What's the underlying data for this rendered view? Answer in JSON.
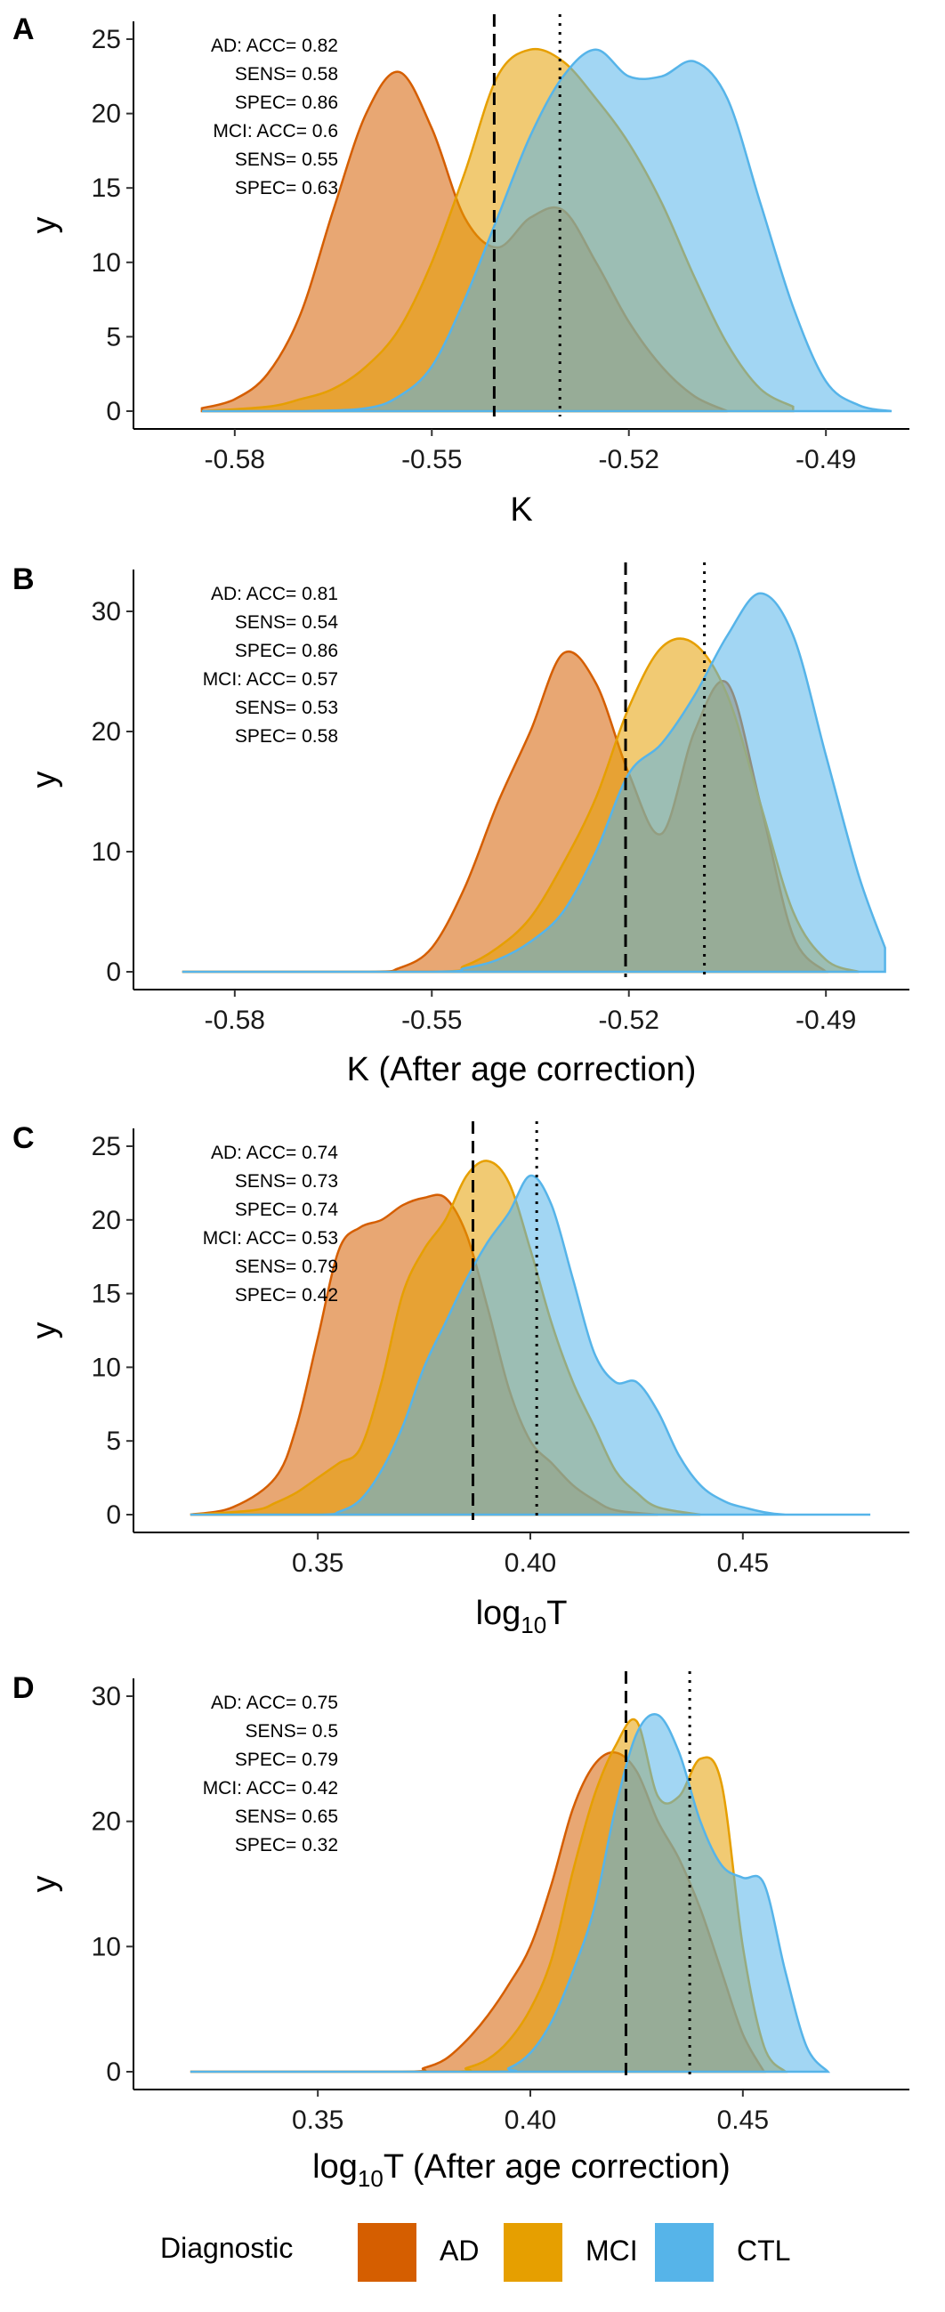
{
  "legend": {
    "title": "Diagnostic",
    "items": [
      {
        "label": "AD",
        "color": "#D55E00"
      },
      {
        "label": "MCI",
        "color": "#E69F00"
      },
      {
        "label": "CTL",
        "color": "#56B4E9"
      }
    ]
  },
  "chart_data": [
    {
      "panel": "A",
      "type": "area",
      "xlabel": "K",
      "xlabel_sub": "",
      "ylabel": "y",
      "xlim": [
        -0.59,
        -0.48
      ],
      "ylim": [
        0,
        25
      ],
      "xticks": [
        -0.58,
        -0.55,
        -0.52,
        -0.49
      ],
      "xtick_labels": [
        "-0.58",
        "-0.55",
        "-0.52",
        "-0.49"
      ],
      "yticks": [
        0,
        5,
        10,
        15,
        20,
        25
      ],
      "ytick_labels": [
        "0",
        "5",
        "10",
        "15",
        "20",
        "25"
      ],
      "vlines": [
        {
          "x": -0.5405,
          "style": "dashed"
        },
        {
          "x": -0.5305,
          "style": "dotted"
        }
      ],
      "stats": [
        {
          "text": "AD: ACC= 0.82"
        },
        {
          "text": "SENS= 0.58"
        },
        {
          "text": "SPEC= 0.86"
        },
        {
          "text": "MCI: ACC= 0.6"
        },
        {
          "text": "SENS= 0.55"
        },
        {
          "text": "SPEC= 0.63"
        }
      ],
      "series": [
        {
          "name": "AD",
          "color": "#D55E00",
          "x": [
            -0.585,
            -0.58,
            -0.575,
            -0.57,
            -0.565,
            -0.56,
            -0.555,
            -0.55,
            -0.545,
            -0.54,
            -0.535,
            -0.53,
            -0.525,
            -0.52,
            -0.515,
            -0.51,
            -0.505
          ],
          "values": [
            0.2,
            0.8,
            2.5,
            6.5,
            13.5,
            20,
            22.8,
            19,
            13,
            11,
            13,
            13.5,
            10,
            6,
            3,
            1,
            0
          ]
        },
        {
          "name": "MCI",
          "color": "#E69F00",
          "x": [
            -0.585,
            -0.575,
            -0.57,
            -0.565,
            -0.56,
            -0.555,
            -0.55,
            -0.545,
            -0.54,
            -0.535,
            -0.53,
            -0.525,
            -0.52,
            -0.515,
            -0.51,
            -0.505,
            -0.5,
            -0.495
          ],
          "values": [
            0,
            0.3,
            0.8,
            1.5,
            3,
            5.5,
            10,
            16,
            22.5,
            24.3,
            23.5,
            21,
            18,
            14,
            9,
            4.5,
            1.5,
            0.3
          ]
        },
        {
          "name": "CTL",
          "color": "#56B4E9",
          "x": [
            -0.585,
            -0.57,
            -0.56,
            -0.555,
            -0.55,
            -0.545,
            -0.54,
            -0.535,
            -0.53,
            -0.525,
            -0.52,
            -0.515,
            -0.51,
            -0.505,
            -0.5,
            -0.495,
            -0.49,
            -0.485,
            -0.48
          ],
          "values": [
            0,
            0,
            0.2,
            1,
            3,
            7.5,
            13,
            18.5,
            22.5,
            24.3,
            22.5,
            22.5,
            23.5,
            21,
            14,
            7,
            2,
            0.4,
            0
          ]
        }
      ]
    },
    {
      "panel": "B",
      "type": "area",
      "xlabel": "K (After age correction)",
      "xlabel_sub": "",
      "ylabel": "y",
      "xlim": [
        -0.59,
        -0.48
      ],
      "ylim": [
        0,
        32
      ],
      "xticks": [
        -0.58,
        -0.55,
        -0.52,
        -0.49
      ],
      "xtick_labels": [
        "-0.58",
        "-0.55",
        "-0.52",
        "-0.49"
      ],
      "yticks": [
        0,
        10,
        20,
        30
      ],
      "ytick_labels": [
        "0",
        "10",
        "20",
        "30"
      ],
      "vlines": [
        {
          "x": -0.5205,
          "style": "dashed"
        },
        {
          "x": -0.5085,
          "style": "dotted"
        }
      ],
      "stats": [
        {
          "text": "AD: ACC= 0.81"
        },
        {
          "text": "SENS= 0.54"
        },
        {
          "text": "SPEC= 0.86"
        },
        {
          "text": "MCI: ACC= 0.57"
        },
        {
          "text": "SENS= 0.53"
        },
        {
          "text": "SPEC= 0.58"
        }
      ],
      "series": [
        {
          "name": "AD",
          "color": "#D55E00",
          "x": [
            -0.588,
            -0.56,
            -0.555,
            -0.55,
            -0.545,
            -0.54,
            -0.535,
            -0.53,
            -0.525,
            -0.52,
            -0.515,
            -0.51,
            -0.505,
            -0.5,
            -0.495,
            -0.49
          ],
          "values": [
            0,
            0,
            0.3,
            2,
            7,
            14,
            20,
            26.5,
            24,
            16.5,
            11.5,
            20,
            24,
            14,
            3,
            0
          ]
        },
        {
          "name": "MCI",
          "color": "#E69F00",
          "x": [
            -0.588,
            -0.55,
            -0.545,
            -0.54,
            -0.535,
            -0.53,
            -0.525,
            -0.52,
            -0.515,
            -0.51,
            -0.505,
            -0.5,
            -0.495,
            -0.49,
            -0.485
          ],
          "values": [
            0,
            0,
            0.5,
            2,
            4.5,
            9,
            14.5,
            22,
            27,
            27.3,
            23,
            14,
            5,
            1,
            0
          ]
        },
        {
          "name": "CTL",
          "color": "#56B4E9",
          "x": [
            -0.588,
            -0.55,
            -0.545,
            -0.54,
            -0.535,
            -0.53,
            -0.525,
            -0.52,
            -0.515,
            -0.51,
            -0.505,
            -0.5,
            -0.495,
            -0.49,
            -0.485,
            -0.481
          ],
          "values": [
            0,
            0,
            0.3,
            1,
            2.5,
            5,
            10,
            16.5,
            19,
            23,
            28,
            31.5,
            28,
            18,
            8,
            2
          ]
        }
      ]
    },
    {
      "panel": "C",
      "type": "area",
      "xlabel": "log",
      "xlabel_sub": "10",
      "xlabel_tail": "T",
      "ylabel": "y",
      "xlim": [
        0.315,
        0.485
      ],
      "ylim": [
        0,
        25
      ],
      "xticks": [
        0.35,
        0.4,
        0.45
      ],
      "xtick_labels": [
        "0.35",
        "0.40",
        "0.45"
      ],
      "yticks": [
        0,
        5,
        10,
        15,
        20,
        25
      ],
      "ytick_labels": [
        "0",
        "5",
        "10",
        "15",
        "20",
        "25"
      ],
      "vlines": [
        {
          "x": 0.3865,
          "style": "dashed"
        },
        {
          "x": 0.4015,
          "style": "dotted"
        }
      ],
      "stats": [
        {
          "text": "AD: ACC= 0.74"
        },
        {
          "text": "SENS= 0.73"
        },
        {
          "text": "SPEC= 0.74"
        },
        {
          "text": "MCI: ACC= 0.53"
        },
        {
          "text": "SENS= 0.79"
        },
        {
          "text": "SPEC= 0.42"
        }
      ],
      "series": [
        {
          "name": "AD",
          "color": "#D55E00",
          "x": [
            0.32,
            0.33,
            0.34,
            0.345,
            0.35,
            0.355,
            0.36,
            0.365,
            0.37,
            0.375,
            0.38,
            0.385,
            0.39,
            0.395,
            0.4,
            0.405,
            0.41,
            0.415,
            0.42,
            0.43
          ],
          "values": [
            0,
            0.5,
            2.5,
            6,
            12,
            18,
            19.5,
            20,
            21,
            21.5,
            21.5,
            19,
            14,
            8.5,
            5,
            3.5,
            2,
            1,
            0.3,
            0
          ]
        },
        {
          "name": "MCI",
          "color": "#E69F00",
          "x": [
            0.32,
            0.335,
            0.34,
            0.345,
            0.35,
            0.355,
            0.36,
            0.365,
            0.37,
            0.375,
            0.38,
            0.385,
            0.39,
            0.395,
            0.4,
            0.405,
            0.41,
            0.415,
            0.42,
            0.425,
            0.43,
            0.44
          ],
          "values": [
            0,
            0.3,
            0.8,
            1.5,
            2.5,
            3.5,
            4.5,
            9,
            15,
            18,
            20,
            23,
            24,
            22.5,
            18,
            13,
            9,
            6,
            3,
            1.5,
            0.5,
            0
          ]
        },
        {
          "name": "CTL",
          "color": "#56B4E9",
          "x": [
            0.32,
            0.35,
            0.355,
            0.36,
            0.365,
            0.37,
            0.375,
            0.38,
            0.385,
            0.39,
            0.395,
            0.4,
            0.405,
            0.41,
            0.415,
            0.42,
            0.425,
            0.43,
            0.435,
            0.44,
            0.445,
            0.45,
            0.46,
            0.48
          ],
          "values": [
            0,
            0,
            0.2,
            1,
            3,
            6,
            10,
            13,
            16,
            18.5,
            20.5,
            23,
            21,
            16,
            11,
            9,
            9,
            7,
            4,
            2,
            1,
            0.5,
            0,
            0
          ]
        }
      ]
    },
    {
      "panel": "D",
      "type": "area",
      "xlabel": "log",
      "xlabel_sub": "10",
      "xlabel_tail": "T (After age correction)",
      "ylabel": "y",
      "xlim": [
        0.315,
        0.485
      ],
      "ylim": [
        0,
        30
      ],
      "xticks": [
        0.35,
        0.4,
        0.45
      ],
      "xtick_labels": [
        "0.35",
        "0.40",
        "0.45"
      ],
      "yticks": [
        0,
        10,
        20,
        30
      ],
      "ytick_labels": [
        "0",
        "10",
        "20",
        "30"
      ],
      "vlines": [
        {
          "x": 0.4225,
          "style": "dashed"
        },
        {
          "x": 0.4375,
          "style": "dotted"
        }
      ],
      "stats": [
        {
          "text": "AD: ACC= 0.75"
        },
        {
          "text": "SENS= 0.5"
        },
        {
          "text": "SPEC= 0.79"
        },
        {
          "text": "MCI: ACC= 0.42"
        },
        {
          "text": "SENS= 0.65"
        },
        {
          "text": "SPEC= 0.32"
        }
      ],
      "series": [
        {
          "name": "AD",
          "color": "#D55E00",
          "x": [
            0.32,
            0.37,
            0.375,
            0.38,
            0.385,
            0.39,
            0.395,
            0.4,
            0.405,
            0.41,
            0.415,
            0.42,
            0.425,
            0.43,
            0.435,
            0.44,
            0.445,
            0.45,
            0.455
          ],
          "values": [
            0,
            0,
            0.3,
            1,
            2.5,
            4.5,
            7,
            10,
            15,
            21,
            24.5,
            25.5,
            24,
            20,
            17,
            13,
            8,
            3,
            0
          ]
        },
        {
          "name": "MCI",
          "color": "#E69F00",
          "x": [
            0.32,
            0.38,
            0.385,
            0.39,
            0.395,
            0.4,
            0.405,
            0.41,
            0.415,
            0.42,
            0.425,
            0.43,
            0.435,
            0.44,
            0.445,
            0.45,
            0.455,
            0.46
          ],
          "values": [
            0,
            0,
            0.3,
            1,
            2.5,
            5,
            9,
            16,
            22,
            26,
            28,
            22,
            22,
            25,
            23,
            10,
            2,
            0
          ]
        },
        {
          "name": "CTL",
          "color": "#56B4E9",
          "x": [
            0.32,
            0.39,
            0.395,
            0.4,
            0.405,
            0.41,
            0.415,
            0.42,
            0.425,
            0.43,
            0.435,
            0.44,
            0.445,
            0.45,
            0.455,
            0.46,
            0.465,
            0.47
          ],
          "values": [
            0,
            0,
            0.3,
            1.5,
            4,
            8,
            13,
            21,
            27,
            28.5,
            25.5,
            20,
            16.5,
            15.5,
            15,
            8,
            2,
            0
          ]
        }
      ]
    }
  ]
}
